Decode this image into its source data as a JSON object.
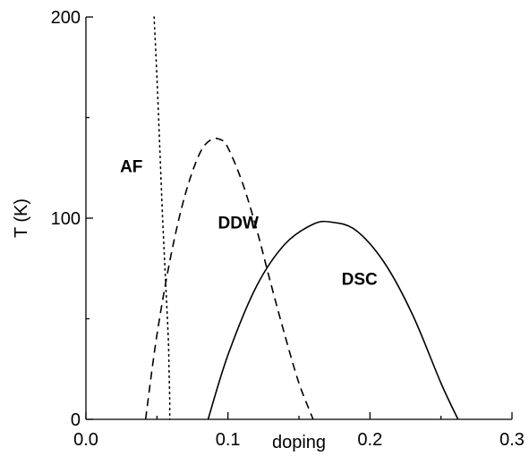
{
  "chart_data": {
    "type": "line",
    "xlabel": "doping",
    "ylabel": "T (K)",
    "xlim": [
      0.0,
      0.3
    ],
    "ylim": [
      0,
      200
    ],
    "x_ticks": [
      "0.0",
      "0.1",
      "0.2",
      "0.3"
    ],
    "y_ticks": [
      "0",
      "100",
      "200"
    ],
    "x_tick_values": [
      0.0,
      0.1,
      0.2,
      0.3
    ],
    "y_tick_values": [
      0,
      100,
      200
    ],
    "grid": false,
    "series": [
      {
        "style": "dotted",
        "x": [
          0.048,
          0.05,
          0.052,
          0.054,
          0.056,
          0.058,
          0.0585,
          0.059,
          0.059
        ],
        "y": [
          200,
          170,
          135,
          100,
          70,
          40,
          25,
          10,
          0
        ]
      },
      {
        "style": "dashed",
        "x": [
          0.042,
          0.05,
          0.06,
          0.07,
          0.08,
          0.088,
          0.095,
          0.1,
          0.11,
          0.12,
          0.13,
          0.14,
          0.15,
          0.16
        ],
        "y": [
          0,
          42,
          82,
          112,
          132,
          139,
          139,
          135,
          118,
          95,
          68,
          42,
          18,
          0
        ]
      },
      {
        "style": "solid",
        "x": [
          0.086,
          0.1,
          0.12,
          0.14,
          0.16,
          0.173,
          0.19,
          0.21,
          0.23,
          0.25,
          0.262
        ],
        "y": [
          0,
          32,
          66,
          87,
          97,
          98,
          94,
          78,
          52,
          18,
          0
        ]
      }
    ],
    "annotations": [
      {
        "text": "AF",
        "x": 0.024,
        "y": 123
      },
      {
        "text": "DDW",
        "x": 0.093,
        "y": 95
      },
      {
        "text": "DSC",
        "x": 0.18,
        "y": 67
      }
    ]
  }
}
